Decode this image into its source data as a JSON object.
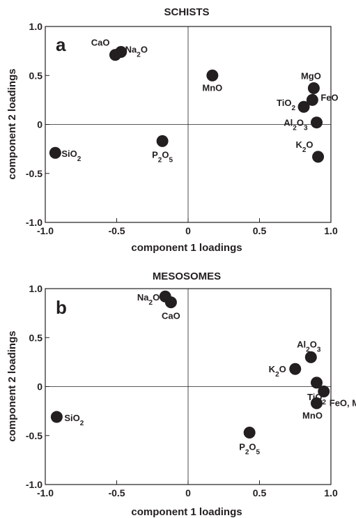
{
  "chart_data": [
    {
      "type": "scatter",
      "panel_letter": "a",
      "title": "SCHISTS",
      "xlabel": "component 1 loadings",
      "ylabel": "component 2 loadings",
      "xlim": [
        -1.0,
        1.0
      ],
      "ylim": [
        -1.0,
        1.0
      ],
      "x_ticks": [
        "-1.0",
        "-0.5",
        "0",
        "0.5",
        "1.0"
      ],
      "y_ticks": [
        "1.0",
        "0.5",
        "0",
        "-0.5",
        "-1.0"
      ],
      "grid": false,
      "points": [
        {
          "label": "CaO",
          "x": -0.51,
          "y": 0.71
        },
        {
          "label": "Na₂O",
          "x": -0.47,
          "y": 0.74
        },
        {
          "label": "MnO",
          "x": 0.17,
          "y": 0.5
        },
        {
          "label": "MgO",
          "x": 0.88,
          "y": 0.37
        },
        {
          "label": "FeO",
          "x": 0.87,
          "y": 0.25
        },
        {
          "label": "TiO₂",
          "x": 0.81,
          "y": 0.18
        },
        {
          "label": "Al₂O₃",
          "x": 0.9,
          "y": 0.02
        },
        {
          "label": "K₂O",
          "x": 0.91,
          "y": -0.33
        },
        {
          "label": "SiO₂",
          "x": -0.93,
          "y": -0.29
        },
        {
          "label": "P₂O₅",
          "x": -0.18,
          "y": -0.17
        }
      ]
    },
    {
      "type": "scatter",
      "panel_letter": "b",
      "title": "MESOSOMES",
      "xlabel": "component 1 loadings",
      "ylabel": "component 2 loadings",
      "xlim": [
        -1.0,
        1.0
      ],
      "ylim": [
        -1.0,
        1.0
      ],
      "x_ticks": [
        "-1.0",
        "-0.5",
        "0",
        "0.5",
        "1.0"
      ],
      "y_ticks": [
        "1.0",
        "0.5",
        "0",
        "-0.5",
        "-1.0"
      ],
      "grid": false,
      "points": [
        {
          "label": "Na₂O",
          "x": -0.16,
          "y": 0.92
        },
        {
          "label": "CaO",
          "x": -0.12,
          "y": 0.86
        },
        {
          "label": "Al₂O₃",
          "x": 0.86,
          "y": 0.3
        },
        {
          "label": "K₂O",
          "x": 0.75,
          "y": 0.18
        },
        {
          "label": "TiO₂",
          "x": 0.9,
          "y": 0.04
        },
        {
          "label": "FeO, MgO",
          "x": 0.95,
          "y": -0.05
        },
        {
          "label": "MnO",
          "x": 0.9,
          "y": -0.17
        },
        {
          "label": "SiO₂",
          "x": -0.92,
          "y": -0.31
        },
        {
          "label": "P₂O₅",
          "x": 0.43,
          "y": -0.47
        }
      ]
    }
  ]
}
